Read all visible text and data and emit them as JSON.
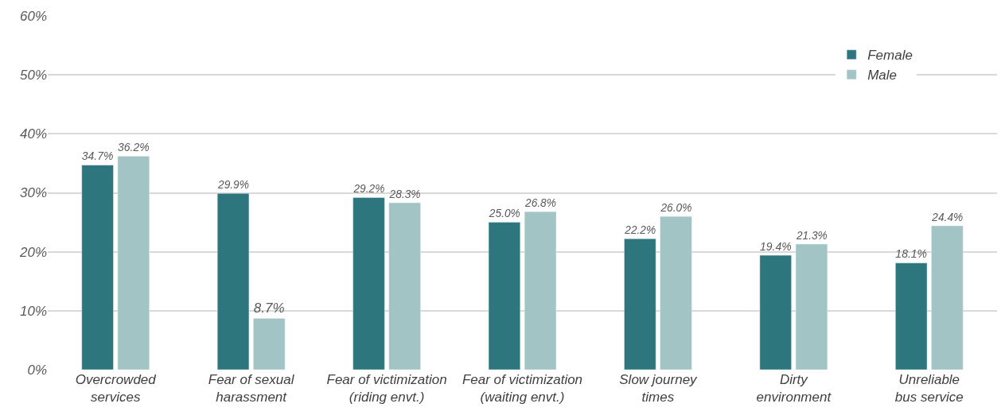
{
  "chart_data": {
    "type": "bar",
    "categories": [
      "Overcrowded\nservices",
      "Fear of sexual\nharassment",
      "Fear of victimization\n(riding envt.)",
      "Fear of victimization\n(waiting envt.)",
      "Slow journey\ntimes",
      "Dirty\nenvironment",
      "Unreliable\nbus service"
    ],
    "series": [
      {
        "name": "Female",
        "color": "#2d767d",
        "values": [
          34.7,
          29.9,
          29.2,
          25.0,
          22.2,
          19.4,
          18.1
        ],
        "value_labels": [
          "34.7%",
          "29.9%",
          "29.2%",
          "25.0%",
          "22.2%",
          "19.4%",
          "18.1%"
        ]
      },
      {
        "name": "Male",
        "color": "#a2c4c4",
        "values": [
          36.2,
          8.7,
          28.3,
          26.8,
          26.0,
          21.3,
          24.4
        ],
        "value_labels": [
          "36.2%",
          "8.7%",
          "28.3%",
          "26.8%",
          "26.0%",
          "21.3%",
          "24.4%"
        ]
      }
    ],
    "ylim": [
      0,
      60
    ],
    "yticks": [
      {
        "value": 0,
        "label": "0%"
      },
      {
        "value": 10,
        "label": "10%"
      },
      {
        "value": 20,
        "label": "20%"
      },
      {
        "value": 30,
        "label": "30%"
      },
      {
        "value": 40,
        "label": "40%"
      },
      {
        "value": 50,
        "label": "50%"
      },
      {
        "value": 60,
        "label": "60%"
      }
    ],
    "grid": "y",
    "legend": "top right"
  }
}
